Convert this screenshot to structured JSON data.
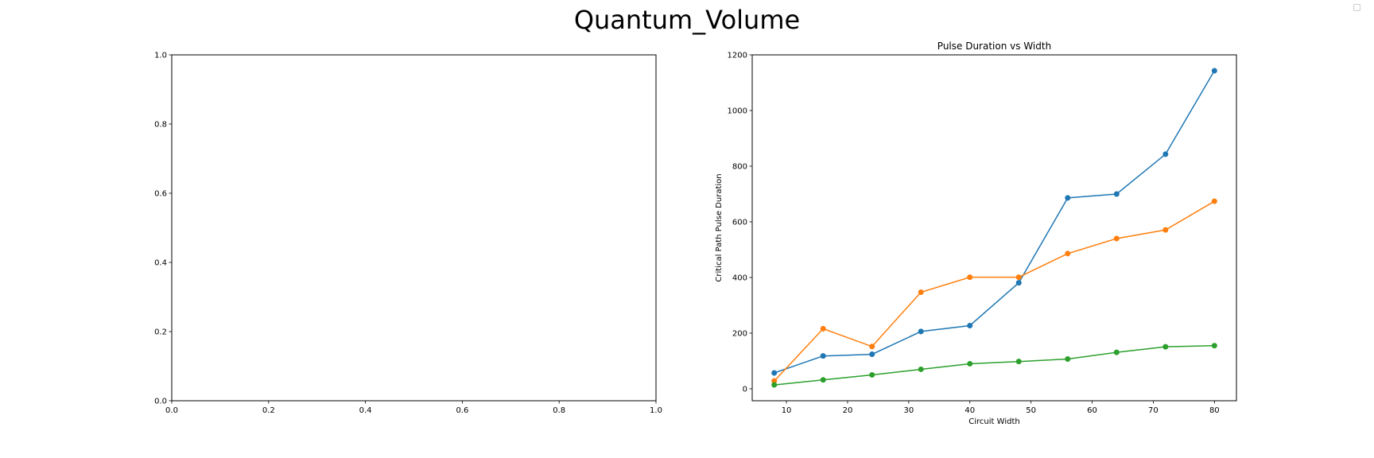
{
  "figure": {
    "suptitle": "Quantum_Volume"
  },
  "chart_data": [
    {
      "type": "line",
      "title": "",
      "xlabel": "",
      "ylabel": "",
      "xlim": [
        0,
        1
      ],
      "ylim": [
        0,
        1
      ],
      "xticks": [
        "0.0",
        "0.2",
        "0.4",
        "0.6",
        "0.8",
        "1.0"
      ],
      "yticks": [
        "0.0",
        "0.2",
        "0.4",
        "0.6",
        "0.8",
        "1.0"
      ],
      "series": [],
      "grid": false
    },
    {
      "type": "line",
      "title": "Pulse Duration vs Width",
      "xlabel": "Circuit Width",
      "ylabel": "Critical Path Pulse Duration",
      "xlim": [
        4.4,
        83.6
      ],
      "ylim": [
        -43,
        1200
      ],
      "xticks": [
        "10",
        "20",
        "30",
        "40",
        "50",
        "60",
        "70",
        "80"
      ],
      "yticks": [
        "0",
        "200",
        "400",
        "600",
        "800",
        "1000",
        "1200"
      ],
      "x": [
        8,
        16,
        24,
        32,
        40,
        48,
        56,
        64,
        72,
        80
      ],
      "series": [
        {
          "color": "#1f77b4",
          "values": [
            57,
            118,
            124,
            206,
            227,
            381,
            686,
            700,
            843,
            1143
          ]
        },
        {
          "color": "#ff7f0e",
          "values": [
            28,
            216,
            152,
            347,
            401,
            401,
            486,
            540,
            571,
            674
          ]
        },
        {
          "color": "#2ca02c",
          "values": [
            14,
            32,
            50,
            70,
            90,
            98,
            107,
            131,
            151,
            155
          ]
        }
      ],
      "grid": false,
      "legend": "top-right (empty)"
    }
  ]
}
